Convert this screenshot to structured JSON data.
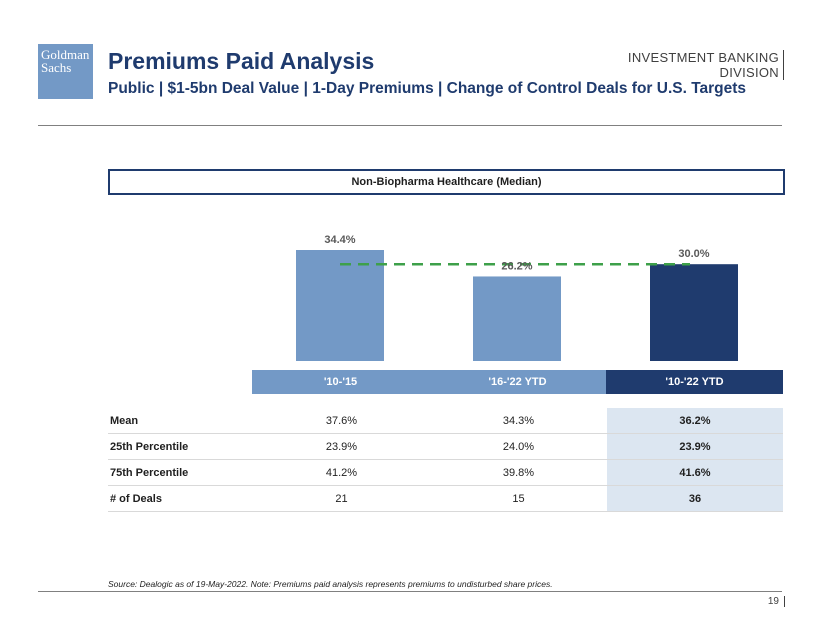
{
  "header": {
    "logo_text": "Goldman Sachs",
    "title": "Premiums Paid Analysis",
    "subtitle": "Public | $1-5bn Deal Value | 1-Day Premiums | Change of Control Deals for U.S. Targets",
    "division_line1": "INVESTMENT BANKING",
    "division_line2": "DIVISION"
  },
  "panel": {
    "title": "Non-Biopharma Healthcare (Median)"
  },
  "colors": {
    "light_bar": "#7399c6",
    "dark_bar": "#1f3b6e",
    "reference_line": "#3ea04a",
    "highlight": "#dce6f1"
  },
  "chart_data": {
    "type": "bar",
    "title": "Non-Biopharma Healthcare (Median)",
    "categories": [
      "'10-'15",
      "'16-'22 YTD",
      "'10-'22 YTD"
    ],
    "values": [
      34.4,
      26.2,
      30.0
    ],
    "value_labels": [
      "34.4%",
      "26.2%",
      "30.0%"
    ],
    "reference_line": {
      "value": 30.0,
      "style": "dashed"
    },
    "ylim": [
      0,
      34.4
    ],
    "xlabel": "",
    "ylabel": ""
  },
  "table": {
    "columns": [
      "'10-'15",
      "'16-'22 YTD",
      "'10-'22 YTD"
    ],
    "rows": [
      {
        "label": "Mean",
        "values": [
          "37.6%",
          "34.3%",
          "36.2%"
        ]
      },
      {
        "label": "25th Percentile",
        "values": [
          "23.9%",
          "24.0%",
          "23.9%"
        ]
      },
      {
        "label": "75th Percentile",
        "values": [
          "41.2%",
          "39.8%",
          "41.6%"
        ]
      },
      {
        "label": "# of Deals",
        "values": [
          "21",
          "15",
          "36"
        ]
      }
    ]
  },
  "footer": {
    "source": "Source: Dealogic as of 19-May-2022. Note: Premiums paid analysis represents premiums to undisturbed share prices.",
    "page_number": "19"
  }
}
